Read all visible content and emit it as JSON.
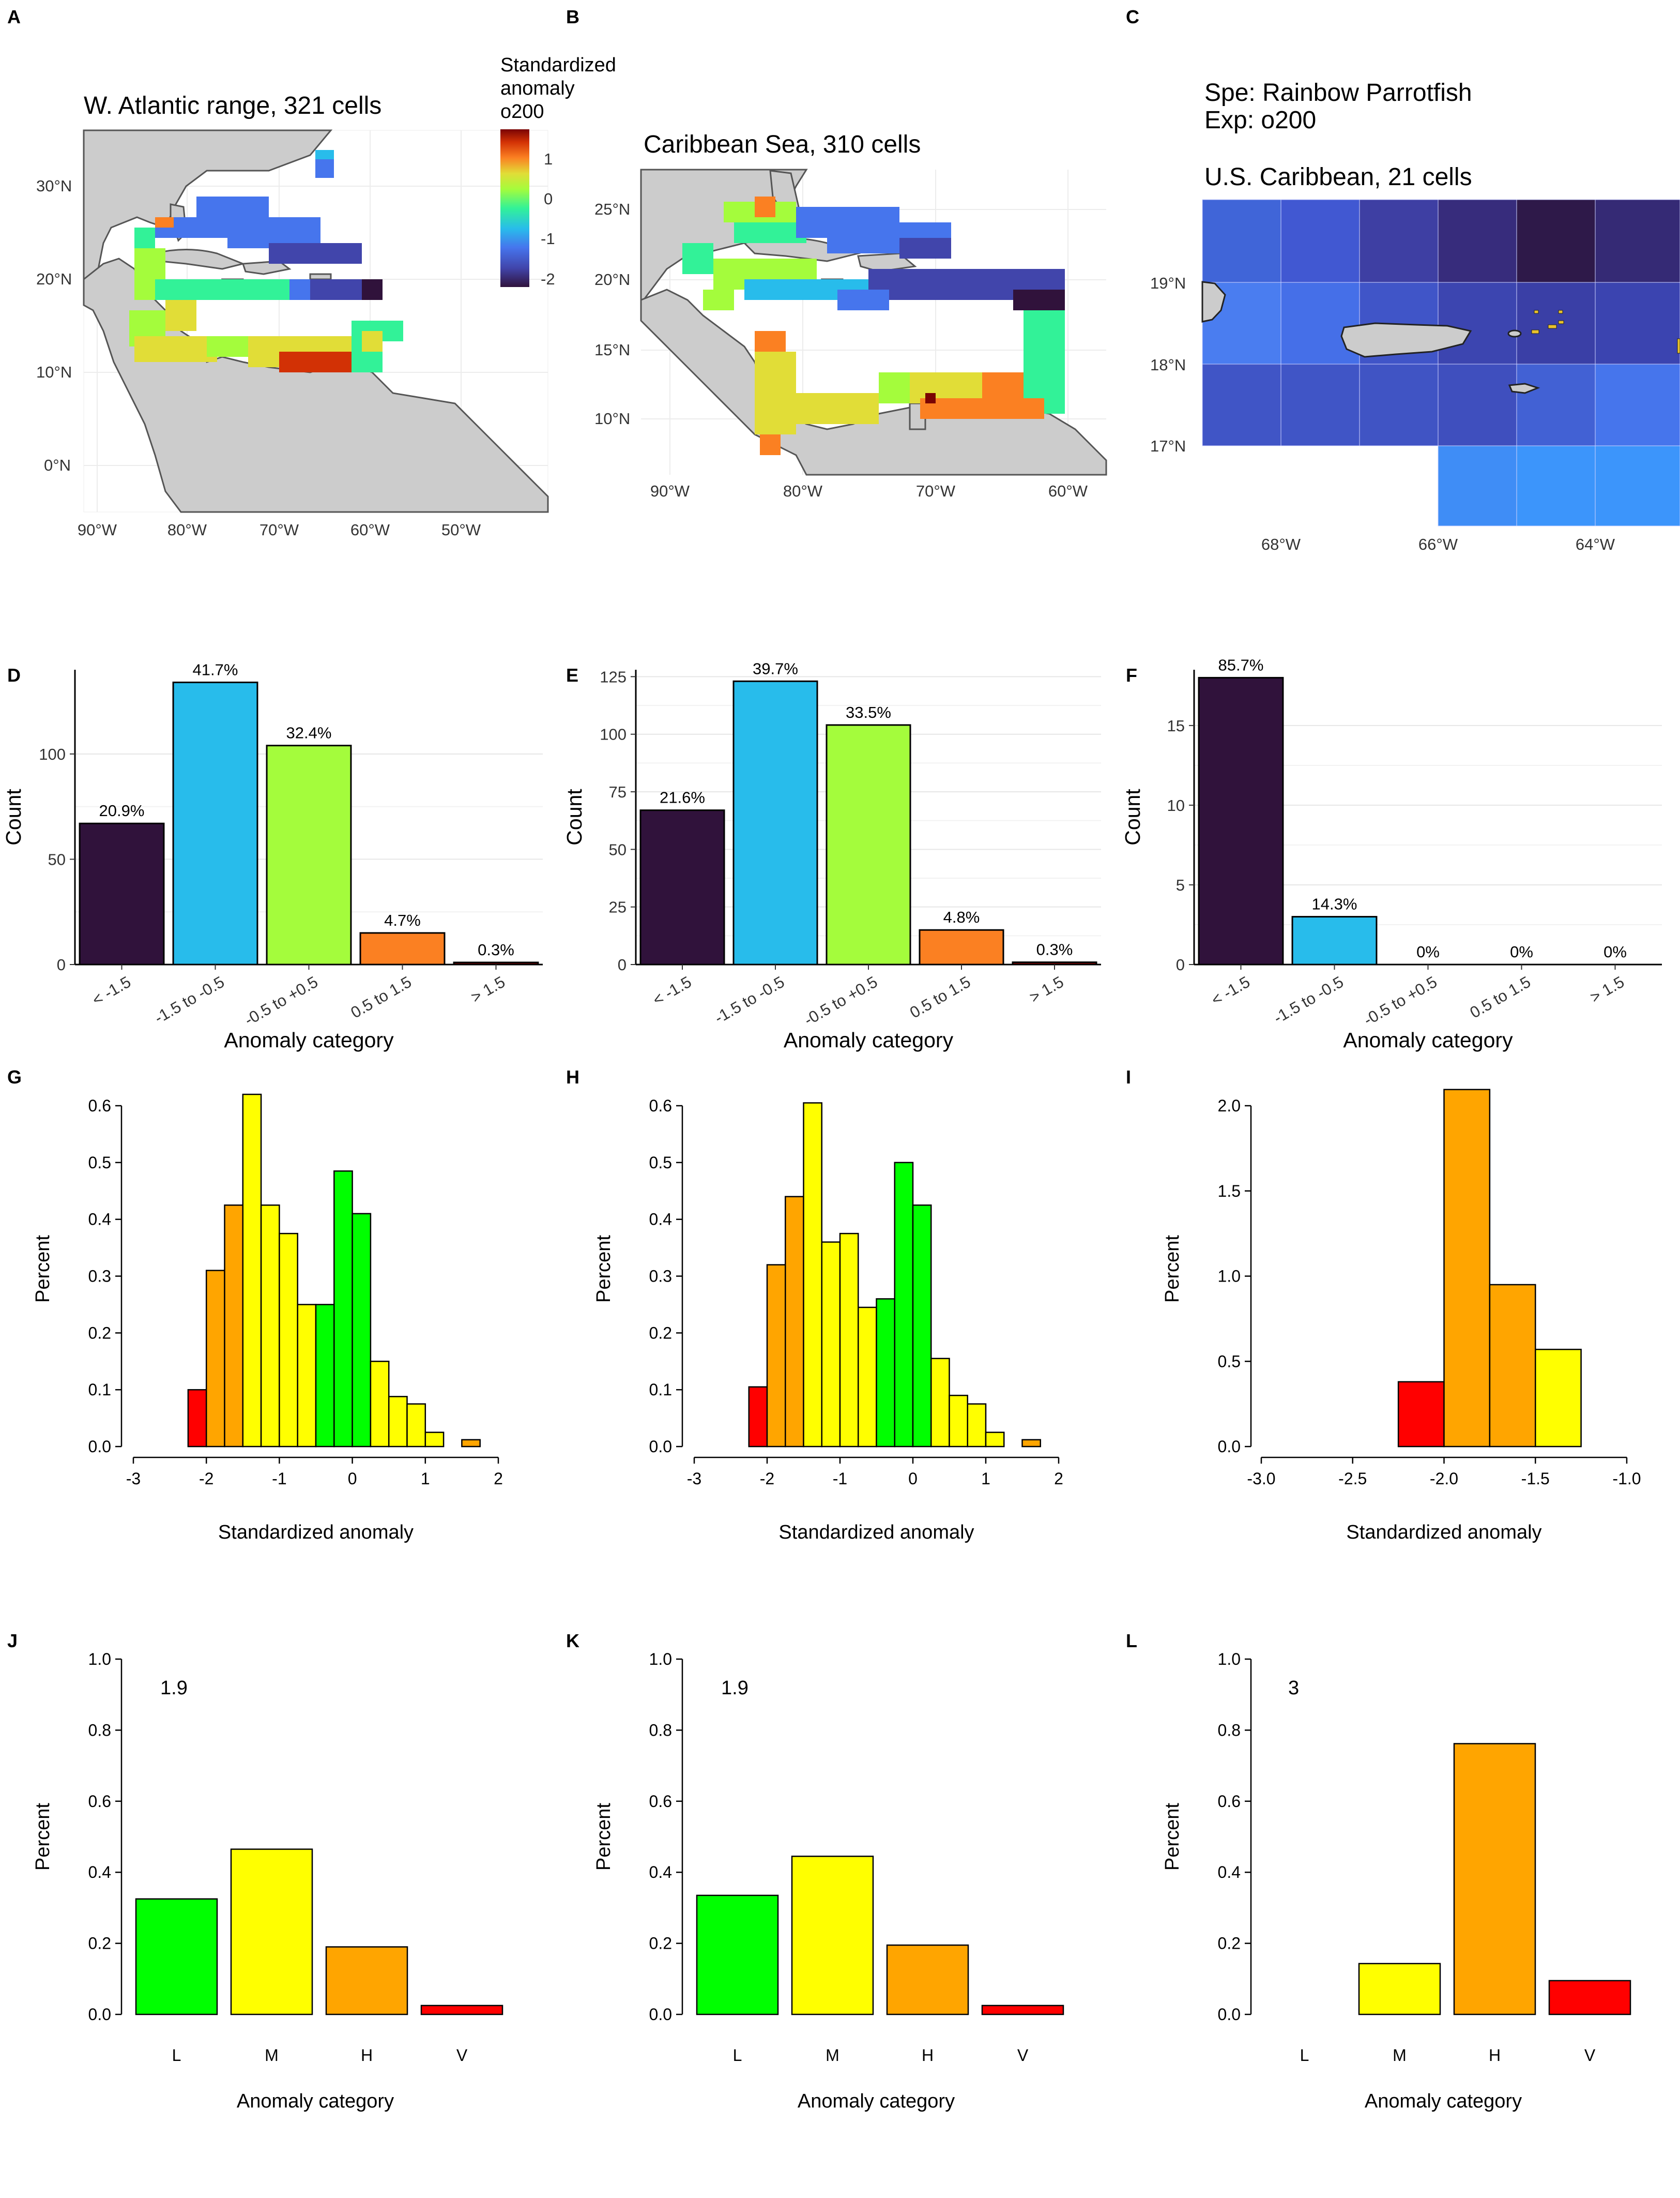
{
  "panel_letters": [
    "A",
    "B",
    "C",
    "D",
    "E",
    "F",
    "G",
    "H",
    "I",
    "J",
    "K",
    "L"
  ],
  "legend": {
    "title_lines": [
      "Standardized",
      "anomaly",
      "o200"
    ],
    "ticks": [
      "1",
      "0",
      "-1",
      "-2"
    ]
  },
  "maps": [
    {
      "id": "A",
      "title": "W. Atlantic range, 321 cells",
      "lat_ticks": [
        "30°N",
        "20°N",
        "10°N",
        "0°N"
      ],
      "lon_ticks": [
        "90°W",
        "80°W",
        "70°W",
        "60°W",
        "50°W"
      ]
    },
    {
      "id": "B",
      "title": "Caribbean Sea, 310 cells",
      "lat_ticks": [
        "25°N",
        "20°N",
        "15°N",
        "10°N"
      ],
      "lon_ticks": [
        "90°W",
        "80°W",
        "70°W",
        "60°W"
      ]
    },
    {
      "id": "C",
      "title": "U.S. Caribbean, 21 cells",
      "header_lines": [
        "Spe: Rainbow Parrotfish",
        "Exp: o200"
      ],
      "lat_ticks": [
        "19°N",
        "18°N",
        "17°N"
      ],
      "lon_ticks": [
        "68°W",
        "66°W",
        "64°W"
      ]
    }
  ],
  "chart_data": [
    {
      "id": "D",
      "type": "bar",
      "categories": [
        "< -1.5",
        "-1.5 to -0.5",
        "-0.5 to +0.5",
        "0.5 to 1.5",
        "> 1.5"
      ],
      "values": [
        67,
        134,
        104,
        15,
        1
      ],
      "labels": [
        "20.9%",
        "41.7%",
        "32.4%",
        "4.7%",
        "0.3%"
      ],
      "colors": [
        "#30123b",
        "#28bceb",
        "#a4fc3c",
        "#fb8022",
        "#7a0403"
      ],
      "xlabel": "Anomaly category",
      "ylabel": "Count",
      "yticks": [
        0,
        50,
        100
      ],
      "ylim": [
        0,
        140
      ],
      "grid": true
    },
    {
      "id": "E",
      "type": "bar",
      "categories": [
        "< -1.5",
        "-1.5 to -0.5",
        "-0.5 to +0.5",
        "0.5 to 1.5",
        "> 1.5"
      ],
      "values": [
        67,
        123,
        104,
        15,
        1
      ],
      "labels": [
        "21.6%",
        "39.7%",
        "33.5%",
        "4.8%",
        "0.3%"
      ],
      "colors": [
        "#30123b",
        "#28bceb",
        "#a4fc3c",
        "#fb8022",
        "#7a0403"
      ],
      "xlabel": "Anomaly category",
      "ylabel": "Count",
      "yticks": [
        0,
        25,
        50,
        75,
        100,
        125
      ],
      "ylim": [
        0,
        128
      ],
      "grid": true
    },
    {
      "id": "F",
      "type": "bar",
      "categories": [
        "< -1.5",
        "-1.5 to -0.5",
        "-0.5 to +0.5",
        "0.5 to 1.5",
        "> 1.5"
      ],
      "values": [
        18,
        3,
        0,
        0,
        0
      ],
      "labels": [
        "85.7%",
        "14.3%",
        "0%",
        "0%",
        "0%"
      ],
      "colors": [
        "#30123b",
        "#28bceb",
        "#a4fc3c",
        "#fb8022",
        "#7a0403"
      ],
      "xlabel": "Anomaly category",
      "ylabel": "Count",
      "yticks": [
        0,
        5,
        10,
        15
      ],
      "ylim": [
        0,
        18.5
      ],
      "grid": true
    },
    {
      "id": "G",
      "type": "histogram",
      "xlabel": "Standardized anomaly",
      "ylabel": "Percent",
      "xticks": [
        -3,
        -2,
        -1,
        0,
        1,
        2
      ],
      "xlim": [
        -3,
        2
      ],
      "yticks": [
        0.0,
        0.1,
        0.2,
        0.3,
        0.4,
        0.5,
        0.6
      ],
      "ylim": [
        0,
        0.62
      ],
      "bins": [
        {
          "x0": -2.25,
          "x1": -2.0,
          "v": 0.1,
          "c": "#ff0000"
        },
        {
          "x0": -2.0,
          "x1": -1.75,
          "v": 0.31,
          "c": "#ffa500"
        },
        {
          "x0": -1.75,
          "x1": -1.5,
          "v": 0.425,
          "c": "#ffa500"
        },
        {
          "x0": -1.5,
          "x1": -1.25,
          "v": 0.62,
          "c": "#ffff00"
        },
        {
          "x0": -1.25,
          "x1": -1.0,
          "v": 0.425,
          "c": "#ffff00"
        },
        {
          "x0": -1.0,
          "x1": -0.75,
          "v": 0.375,
          "c": "#ffff00"
        },
        {
          "x0": -0.75,
          "x1": -0.5,
          "v": 0.25,
          "c": "#ffff00"
        },
        {
          "x0": -0.5,
          "x1": -0.25,
          "v": 0.25,
          "c": "#00ff00"
        },
        {
          "x0": -0.25,
          "x1": 0.0,
          "v": 0.485,
          "c": "#00ff00"
        },
        {
          "x0": 0.0,
          "x1": 0.25,
          "v": 0.41,
          "c": "#00ff00"
        },
        {
          "x0": 0.25,
          "x1": 0.5,
          "v": 0.15,
          "c": "#ffff00"
        },
        {
          "x0": 0.5,
          "x1": 0.75,
          "v": 0.088,
          "c": "#ffff00"
        },
        {
          "x0": 0.75,
          "x1": 1.0,
          "v": 0.075,
          "c": "#ffff00"
        },
        {
          "x0": 1.0,
          "x1": 1.25,
          "v": 0.025,
          "c": "#ffff00"
        },
        {
          "x0": 1.5,
          "x1": 1.75,
          "v": 0.012,
          "c": "#ffa500"
        }
      ]
    },
    {
      "id": "H",
      "type": "histogram",
      "xlabel": "Standardized anomaly",
      "ylabel": "Percent",
      "xticks": [
        -3,
        -2,
        -1,
        0,
        1,
        2
      ],
      "xlim": [
        -3,
        2
      ],
      "yticks": [
        0.0,
        0.1,
        0.2,
        0.3,
        0.4,
        0.5,
        0.6
      ],
      "ylim": [
        0,
        0.61
      ],
      "bins": [
        {
          "x0": -2.25,
          "x1": -2.0,
          "v": 0.105,
          "c": "#ff0000"
        },
        {
          "x0": -2.0,
          "x1": -1.75,
          "v": 0.32,
          "c": "#ffa500"
        },
        {
          "x0": -1.75,
          "x1": -1.5,
          "v": 0.44,
          "c": "#ffa500"
        },
        {
          "x0": -1.5,
          "x1": -1.25,
          "v": 0.605,
          "c": "#ffff00"
        },
        {
          "x0": -1.25,
          "x1": -1.0,
          "v": 0.36,
          "c": "#ffff00"
        },
        {
          "x0": -1.0,
          "x1": -0.75,
          "v": 0.375,
          "c": "#ffff00"
        },
        {
          "x0": -0.75,
          "x1": -0.5,
          "v": 0.245,
          "c": "#ffff00"
        },
        {
          "x0": -0.5,
          "x1": -0.25,
          "v": 0.26,
          "c": "#00ff00"
        },
        {
          "x0": -0.25,
          "x1": 0.0,
          "v": 0.5,
          "c": "#00ff00"
        },
        {
          "x0": 0.0,
          "x1": 0.25,
          "v": 0.425,
          "c": "#00ff00"
        },
        {
          "x0": 0.25,
          "x1": 0.5,
          "v": 0.155,
          "c": "#ffff00"
        },
        {
          "x0": 0.5,
          "x1": 0.75,
          "v": 0.09,
          "c": "#ffff00"
        },
        {
          "x0": 0.75,
          "x1": 1.0,
          "v": 0.075,
          "c": "#ffff00"
        },
        {
          "x0": 1.0,
          "x1": 1.25,
          "v": 0.025,
          "c": "#ffff00"
        },
        {
          "x0": 1.5,
          "x1": 1.75,
          "v": 0.012,
          "c": "#ffa500"
        }
      ]
    },
    {
      "id": "I",
      "type": "histogram",
      "xlabel": "Standardized anomaly",
      "ylabel": "Percent",
      "xticks": [
        -3.0,
        -2.5,
        -2.0,
        -1.5,
        -1.0
      ],
      "xtick_labels": [
        "-3.0",
        "-2.5",
        "-2.0",
        "-1.5",
        "-1.0"
      ],
      "xlim": [
        -3.0,
        -1.0
      ],
      "yticks": [
        0.0,
        0.5,
        1.0,
        1.5,
        2.0
      ],
      "ytick_labels": [
        "0.0",
        "0.5",
        "1.0",
        "1.5",
        "2.0"
      ],
      "ylim": [
        0,
        2.1
      ],
      "bins": [
        {
          "x0": -2.25,
          "x1": -2.0,
          "v": 0.38,
          "c": "#ff0000"
        },
        {
          "x0": -2.0,
          "x1": -1.75,
          "v": 2.095,
          "c": "#ffa500"
        },
        {
          "x0": -1.75,
          "x1": -1.5,
          "v": 0.95,
          "c": "#ffa500"
        },
        {
          "x0": -1.5,
          "x1": -1.25,
          "v": 0.57,
          "c": "#ffff00"
        }
      ]
    },
    {
      "id": "J",
      "type": "bar",
      "categories": [
        "L",
        "M",
        "H",
        "V"
      ],
      "values": [
        0.325,
        0.465,
        0.19,
        0.025
      ],
      "colors": [
        "#00ff00",
        "#ffff00",
        "#ffa500",
        "#ff0000"
      ],
      "annotation": "1.9",
      "xlabel": "Anomaly category",
      "ylabel": "Percent",
      "yticks": [
        0.0,
        0.2,
        0.4,
        0.6,
        0.8,
        1.0
      ],
      "ylim": [
        0,
        1.0
      ]
    },
    {
      "id": "K",
      "type": "bar",
      "categories": [
        "L",
        "M",
        "H",
        "V"
      ],
      "values": [
        0.335,
        0.445,
        0.195,
        0.025
      ],
      "colors": [
        "#00ff00",
        "#ffff00",
        "#ffa500",
        "#ff0000"
      ],
      "annotation": "1.9",
      "xlabel": "Anomaly category",
      "ylabel": "Percent",
      "yticks": [
        0.0,
        0.2,
        0.4,
        0.6,
        0.8,
        1.0
      ],
      "ylim": [
        0,
        1.0
      ]
    },
    {
      "id": "L",
      "type": "bar",
      "categories": [
        "L",
        "M",
        "H",
        "V"
      ],
      "values": [
        0.0,
        0.143,
        0.762,
        0.095
      ],
      "colors": [
        "#00ff00",
        "#ffff00",
        "#ffa500",
        "#ff0000"
      ],
      "annotation": "3",
      "xlabel": "Anomaly category",
      "ylabel": "Percent",
      "yticks": [
        0.0,
        0.2,
        0.4,
        0.6,
        0.8,
        1.0
      ],
      "ylim": [
        0,
        1.0
      ]
    }
  ]
}
